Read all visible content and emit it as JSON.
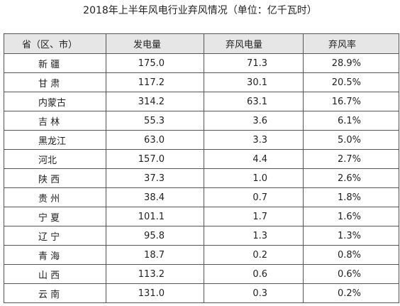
{
  "header": {
    "title": "2018年上半年风电行业弃风情况（单位：亿千瓦时）"
  },
  "table": {
    "columns": [
      "省（区、市）",
      "发电量",
      "弃风电量",
      "弃风率"
    ],
    "rows": [
      [
        "新 疆",
        "175.0",
        "71.3",
        "28.9%"
      ],
      [
        "甘 肃",
        "117.2",
        "30.1",
        "20.5%"
      ],
      [
        "内蒙古",
        "314.2",
        "63.1",
        "16.7%"
      ],
      [
        "吉 林",
        "55.3",
        "3.6",
        "6.1%"
      ],
      [
        "黑龙江",
        "63.0",
        "3.3",
        "5.0%"
      ],
      [
        "河北",
        "157.0",
        "4.4",
        "2.7%"
      ],
      [
        "陕 西",
        "37.3",
        "1.0",
        "2.6%"
      ],
      [
        "贵 州",
        "38.4",
        "0.7",
        "1.8%"
      ],
      [
        "宁 夏",
        "101.1",
        "1.7",
        "1.6%"
      ],
      [
        "辽 宁",
        "95.8",
        "1.3",
        "1.3%"
      ],
      [
        "青 海",
        "18.7",
        "0.2",
        "0.8%"
      ],
      [
        "山 西",
        "113.2",
        "0.6",
        "0.6%"
      ],
      [
        "云 南",
        "131.0",
        "0.3",
        "0.2%"
      ]
    ]
  }
}
